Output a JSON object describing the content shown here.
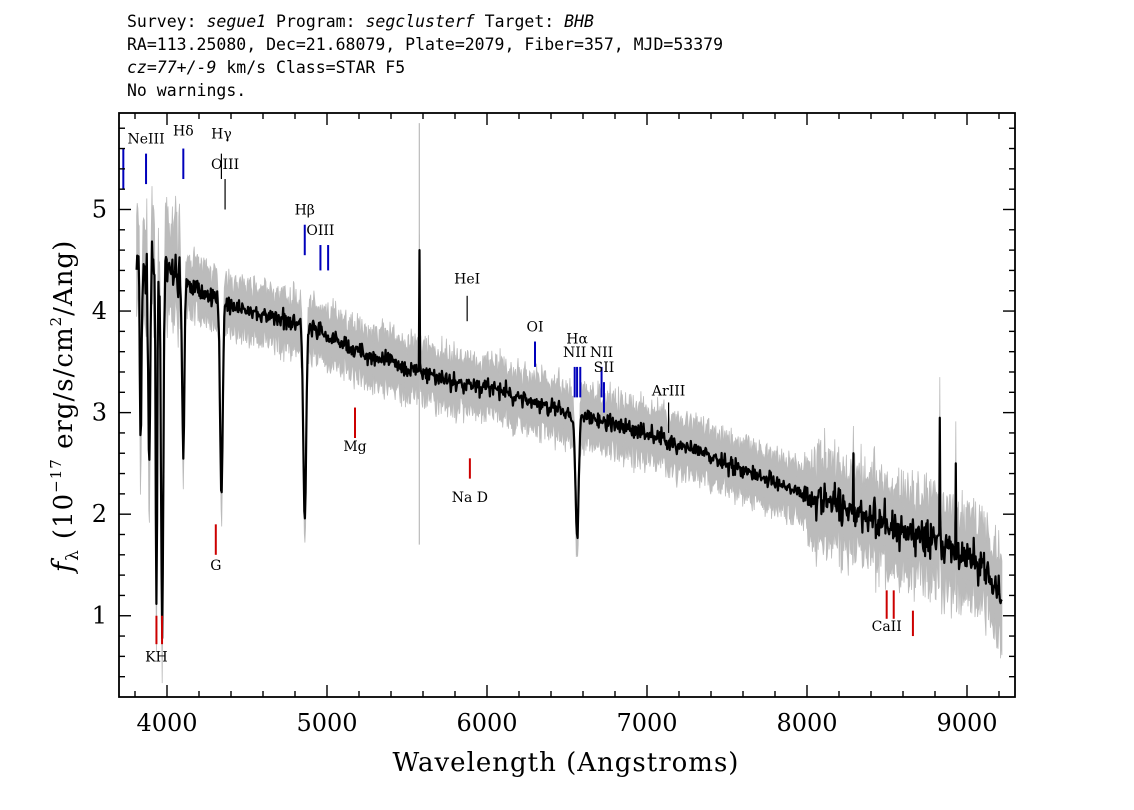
{
  "header": {
    "survey_label": "Survey:",
    "survey": "segue1",
    "program_label": "Program:",
    "program": "segclusterf",
    "target_label": "Target:",
    "target": "BHB",
    "line2": "RA=113.25080, Dec=21.68079, Plate=2079, Fiber=357, MJD=53379",
    "cz_value": "cz=77+/-9",
    "cz_rest": " km/s Class=STAR F5",
    "line4": "No warnings."
  },
  "chart_data": {
    "type": "line",
    "xlabel": "Wavelength (Angstroms)",
    "ylabel": "f_λ (10^-17 erg/s/cm^2/Ang)",
    "ylabel_parts": {
      "f": "f",
      "sub": "λ",
      "pre": "(10",
      "exp1": "−17",
      "mid": " erg/s/cm",
      "exp2": "2",
      "post": "/Ang)"
    },
    "xlim": [
      3700,
      9300
    ],
    "ylim": [
      0.2,
      5.95
    ],
    "x_ticks": [
      4000,
      5000,
      6000,
      7000,
      8000,
      9000
    ],
    "x_tick_labels": [
      "4000",
      "5000",
      "6000",
      "7000",
      "8000",
      "9000"
    ],
    "y_ticks": [
      1,
      2,
      3,
      4,
      5
    ],
    "y_tick_labels": [
      "1",
      "2",
      "3",
      "4",
      "5"
    ],
    "colors": {
      "flux": "#000000",
      "error_band": "#bbbbbb",
      "emission": "#0000bb",
      "absorption": "#cc0000",
      "other": "#000000"
    },
    "continuum_points": [
      [
        3810,
        4.5
      ],
      [
        3850,
        4.35
      ],
      [
        3900,
        4.45
      ],
      [
        4000,
        4.4
      ],
      [
        4100,
        4.3
      ],
      [
        4200,
        4.2
      ],
      [
        4400,
        4.05
      ],
      [
        4600,
        3.95
      ],
      [
        4800,
        3.9
      ],
      [
        5000,
        3.75
      ],
      [
        5200,
        3.6
      ],
      [
        5500,
        3.45
      ],
      [
        5800,
        3.3
      ],
      [
        6000,
        3.25
      ],
      [
        6200,
        3.15
      ],
      [
        6500,
        3.0
      ],
      [
        7000,
        2.8
      ],
      [
        7500,
        2.5
      ],
      [
        8000,
        2.2
      ],
      [
        8500,
        1.9
      ],
      [
        8900,
        1.65
      ],
      [
        9100,
        1.5
      ],
      [
        9220,
        1.2
      ]
    ],
    "absorption_features": [
      {
        "center": 3835,
        "depth": 1.7,
        "width": 5
      },
      {
        "center": 3889,
        "depth": 2.0,
        "width": 6
      },
      {
        "center": 3934,
        "depth": 3.3,
        "width": 5
      },
      {
        "center": 3970,
        "depth": 3.5,
        "width": 7
      },
      {
        "center": 4102,
        "depth": 1.7,
        "width": 7
      },
      {
        "center": 4340,
        "depth": 1.9,
        "width": 8
      },
      {
        "center": 4861,
        "depth": 1.9,
        "width": 9
      },
      {
        "center": 6563,
        "depth": 1.2,
        "width": 10
      }
    ],
    "spikes": [
      [
        5577,
        4.6
      ],
      [
        8290,
        2.6
      ],
      [
        8830,
        2.95
      ],
      [
        8930,
        2.5
      ]
    ],
    "lines": [
      {
        "label": "",
        "lambda": 3727,
        "color": "emission",
        "y1": 5.6,
        "y2": 5.2,
        "label_y": 5.65
      },
      {
        "label": "NeIII",
        "lambda": 3869,
        "color": "emission",
        "y1": 5.55,
        "y2": 5.25,
        "label_y": 5.65
      },
      {
        "label": "Hδ",
        "lambda": 4102,
        "color": "emission",
        "y1": 5.6,
        "y2": 5.3,
        "label_y": 5.73
      },
      {
        "label": "Hγ",
        "lambda": 4340,
        "color": "other",
        "y1": 5.55,
        "y2": 5.3,
        "label_y": 5.7
      },
      {
        "label": "OIII",
        "lambda": 4363,
        "color": "other",
        "y1": 5.3,
        "y2": 5.0,
        "label_y": 5.4
      },
      {
        "label": "Hβ",
        "lambda": 4861,
        "color": "emission",
        "y1": 4.85,
        "y2": 4.55,
        "label_y": 4.95
      },
      {
        "label": "OIII",
        "lambda": 4959,
        "color": "emission",
        "y1": 4.65,
        "y2": 4.4,
        "label_y": 4.75
      },
      {
        "label": "",
        "lambda": 5007,
        "color": "emission",
        "y1": 4.65,
        "y2": 4.4,
        "label_y": 4.75
      },
      {
        "label": "Mg",
        "lambda": 5175,
        "color": "absorption",
        "y1": 3.05,
        "y2": 2.75,
        "label_y": 2.62
      },
      {
        "label": "HeI",
        "lambda": 5876,
        "color": "other",
        "y1": 4.15,
        "y2": 3.9,
        "label_y": 4.27
      },
      {
        "label": "Na D",
        "lambda": 5893,
        "color": "absorption",
        "y1": 2.55,
        "y2": 2.35,
        "label_y": 2.12
      },
      {
        "label": "OI",
        "lambda": 6300,
        "color": "emission",
        "y1": 3.7,
        "y2": 3.45,
        "label_y": 3.8
      },
      {
        "label": "NII",
        "lambda": 6548,
        "color": "emission",
        "y1": 3.45,
        "y2": 3.15,
        "label_y": 3.55
      },
      {
        "label": "Hα",
        "lambda": 6563,
        "color": "emission",
        "y1": 3.45,
        "y2": 3.15,
        "label_y": 3.68
      },
      {
        "label": "",
        "lambda": 6583,
        "color": "emission",
        "y1": 3.45,
        "y2": 3.15,
        "label_y": 3.55
      },
      {
        "label": "NII",
        "lambda": 6716,
        "color": "emission",
        "y1": 3.45,
        "y2": 3.15,
        "label_y": 3.55
      },
      {
        "label": "SII",
        "lambda": 6731,
        "color": "emission",
        "y1": 3.3,
        "y2": 3.0,
        "label_y": 3.4
      },
      {
        "label": "ArIII",
        "lambda": 7135,
        "color": "other",
        "y1": 3.1,
        "y2": 2.8,
        "label_y": 3.17
      },
      {
        "label": "CaII",
        "lambda": 8498,
        "color": "absorption",
        "y1": 1.25,
        "y2": 0.97,
        "label_y": 0.85
      },
      {
        "label": "",
        "lambda": 8542,
        "color": "absorption",
        "y1": 1.25,
        "y2": 0.97,
        "label_y": 0.85
      },
      {
        "label": "",
        "lambda": 8662,
        "color": "absorption",
        "y1": 1.05,
        "y2": 0.8,
        "label_y": 0.85
      },
      {
        "label": "G",
        "lambda": 4305,
        "color": "absorption",
        "y1": 1.9,
        "y2": 1.6,
        "label_y": 1.45
      },
      {
        "label": "KH",
        "lambda": 3934,
        "color": "absorption",
        "y1": 1.0,
        "y2": 0.72,
        "label_y": 0.55
      },
      {
        "label": "",
        "lambda": 3969,
        "color": "absorption",
        "y1": 1.0,
        "y2": 0.72,
        "label_y": 0.55
      }
    ]
  }
}
